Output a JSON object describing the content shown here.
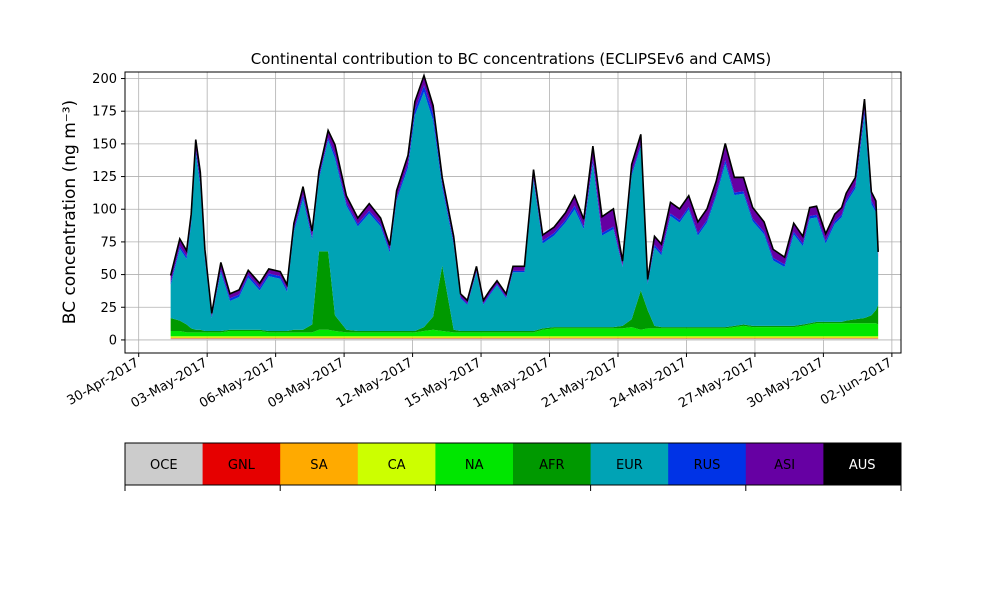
{
  "chart_data": {
    "type": "area",
    "title": "Continental contribution to BC concentrations (ECLIPSEv6 and CAMS)",
    "ylabel": "BC concentration (ng m⁻³)",
    "xlabel": "",
    "x_unit": "days since 01-May-2017",
    "xlim": [
      -1.6,
      32.4
    ],
    "ylim": [
      -10,
      205
    ],
    "grid": true,
    "x_ticks": [
      {
        "value": -1,
        "label": "30-Apr-2017"
      },
      {
        "value": 2,
        "label": "03-May-2017"
      },
      {
        "value": 5,
        "label": "06-May-2017"
      },
      {
        "value": 8,
        "label": "09-May-2017"
      },
      {
        "value": 11,
        "label": "12-May-2017"
      },
      {
        "value": 14,
        "label": "15-May-2017"
      },
      {
        "value": 17,
        "label": "18-May-2017"
      },
      {
        "value": 20,
        "label": "21-May-2017"
      },
      {
        "value": 23,
        "label": "24-May-2017"
      },
      {
        "value": 26,
        "label": "27-May-2017"
      },
      {
        "value": 29,
        "label": "30-May-2017"
      },
      {
        "value": 32,
        "label": "02-Jun-2017"
      }
    ],
    "y_ticks": [
      0,
      25,
      50,
      75,
      100,
      125,
      150,
      175,
      200
    ],
    "x": [
      0.4,
      0.8,
      1.1,
      1.3,
      1.5,
      1.7,
      1.9,
      2.2,
      2.6,
      3.0,
      3.4,
      3.8,
      4.3,
      4.7,
      5.2,
      5.5,
      5.8,
      6.2,
      6.6,
      6.9,
      7.3,
      7.6,
      8.1,
      8.6,
      9.1,
      9.6,
      10.0,
      10.3,
      10.8,
      11.1,
      11.5,
      11.9,
      12.3,
      12.8,
      13.1,
      13.4,
      13.8,
      14.1,
      14.4,
      14.7,
      15.1,
      15.4,
      15.9,
      16.3,
      16.7,
      17.2,
      17.7,
      18.1,
      18.5,
      18.9,
      19.3,
      19.8,
      20.2,
      20.6,
      21.0,
      21.3,
      21.6,
      21.9,
      22.3,
      22.7,
      23.1,
      23.5,
      23.9,
      24.3,
      24.7,
      25.1,
      25.5,
      25.9,
      26.4,
      26.8,
      27.3,
      27.7,
      28.1,
      28.4,
      28.7,
      29.1,
      29.5,
      29.8,
      30.0,
      30.4,
      30.8,
      31.1,
      31.3,
      31.4
    ],
    "series": [
      {
        "name": "OCE",
        "color": "#cccccc",
        "values": [
          1,
          1,
          1,
          1,
          1,
          1,
          1,
          1,
          1,
          1,
          1,
          1,
          1,
          1,
          1,
          1,
          1,
          1,
          1,
          1,
          1,
          1,
          1,
          1,
          1,
          1,
          1,
          1,
          1,
          1,
          1,
          1,
          1,
          1,
          1,
          1,
          1,
          1,
          1,
          1,
          1,
          1,
          1,
          1,
          1,
          1,
          1,
          1,
          1,
          1,
          1,
          1,
          1,
          1,
          1,
          1,
          1,
          1,
          1,
          1,
          1,
          1,
          1,
          1,
          1,
          1,
          1,
          1,
          1,
          1,
          1,
          1,
          1,
          1,
          1,
          1,
          1,
          1,
          1,
          1,
          1,
          1,
          1,
          1
        ]
      },
      {
        "name": "GNL",
        "color": "#e60000",
        "values": [
          0.3,
          0.3,
          0.3,
          0.3,
          0.3,
          0.3,
          0.3,
          0.3,
          0.3,
          0.3,
          0.3,
          0.3,
          0.3,
          0.3,
          0.3,
          0.3,
          0.3,
          0.3,
          0.3,
          0.3,
          0.3,
          0.3,
          0.3,
          0.3,
          0.3,
          0.3,
          0.3,
          0.3,
          0.3,
          0.3,
          0.3,
          0.3,
          0.3,
          0.3,
          0.3,
          0.3,
          0.3,
          0.3,
          0.3,
          0.3,
          0.3,
          0.3,
          0.3,
          0.3,
          0.3,
          0.3,
          0.3,
          0.3,
          0.3,
          0.3,
          0.3,
          0.3,
          0.3,
          0.3,
          0.3,
          0.3,
          0.3,
          0.3,
          0.3,
          0.3,
          0.3,
          0.3,
          0.3,
          0.3,
          0.3,
          0.3,
          0.3,
          0.3,
          0.3,
          0.3,
          0.3,
          0.3,
          0.3,
          0.3,
          0.3,
          0.3,
          0.3,
          0.3,
          0.3,
          0.3,
          0.3,
          0.3,
          0.3,
          0.3
        ]
      },
      {
        "name": "SA",
        "color": "#ffaa00",
        "values": [
          0.5,
          0.5,
          0.5,
          0.5,
          0.5,
          0.5,
          0.5,
          0.5,
          0.5,
          0.5,
          0.5,
          0.5,
          0.5,
          0.5,
          0.5,
          0.5,
          0.5,
          0.5,
          0.5,
          0.5,
          0.5,
          0.5,
          0.5,
          0.5,
          0.5,
          0.5,
          0.5,
          0.5,
          0.5,
          0.5,
          0.5,
          0.5,
          0.5,
          0.5,
          0.5,
          0.5,
          0.5,
          0.5,
          0.5,
          0.5,
          0.5,
          0.5,
          0.5,
          0.5,
          0.5,
          0.5,
          0.5,
          0.5,
          0.5,
          0.5,
          0.5,
          0.5,
          0.5,
          0.5,
          0.5,
          0.5,
          0.5,
          0.5,
          0.5,
          0.5,
          0.5,
          0.5,
          0.5,
          0.5,
          0.5,
          0.5,
          0.5,
          0.5,
          0.5,
          0.5,
          0.5,
          0.5,
          0.5,
          0.5,
          0.5,
          0.5,
          0.5,
          0.5,
          0.5,
          0.5,
          0.5,
          0.5,
          0.5,
          0.5
        ]
      },
      {
        "name": "CA",
        "color": "#ccff00",
        "values": [
          1,
          1,
          1,
          1,
          1,
          1,
          1,
          1,
          1,
          1,
          1,
          1,
          1,
          1,
          1,
          1,
          1,
          1,
          1,
          1,
          1,
          1,
          1,
          1,
          1,
          1,
          1,
          1,
          1,
          1,
          1,
          1,
          1,
          1,
          1,
          1,
          1,
          1,
          1,
          1,
          1,
          1,
          1,
          1,
          1,
          1,
          1,
          1,
          1,
          1,
          1,
          1,
          1,
          1,
          1,
          1,
          1,
          1,
          1,
          1,
          1,
          1,
          1,
          1,
          1,
          1,
          1,
          1,
          1,
          1,
          1,
          1,
          1,
          1,
          1,
          1,
          1,
          1,
          1,
          1,
          1,
          1,
          1,
          1
        ]
      },
      {
        "name": "NA",
        "color": "#00e600",
        "values": [
          4,
          4,
          3,
          3,
          3,
          3,
          3,
          3,
          3,
          4,
          4,
          4,
          4,
          3,
          3,
          3,
          3,
          3,
          3,
          5,
          5,
          4,
          3,
          3,
          3,
          3,
          3,
          3,
          3,
          3,
          4,
          5,
          4,
          3,
          3,
          3,
          3,
          3,
          3,
          3,
          3,
          3,
          3,
          3,
          5,
          6,
          6,
          6,
          6,
          6,
          6,
          6,
          6,
          7,
          5,
          6,
          6,
          6,
          6,
          6,
          6,
          6,
          6,
          6,
          6,
          7,
          8,
          7,
          7,
          7,
          7,
          7,
          8,
          9,
          10,
          10,
          10,
          10,
          10,
          10,
          10,
          10,
          10,
          9
        ]
      },
      {
        "name": "AFR",
        "color": "#009900",
        "values": [
          10,
          8,
          6,
          3,
          2,
          2,
          1,
          1,
          1,
          1,
          1,
          1,
          1,
          1,
          1,
          1,
          2,
          2,
          6,
          60,
          60,
          12,
          2,
          1,
          1,
          1,
          1,
          1,
          1,
          1,
          3,
          10,
          50,
          2,
          1,
          1,
          1,
          1,
          1,
          1,
          1,
          1,
          1,
          1,
          1,
          1,
          1,
          1,
          1,
          1,
          1,
          1,
          2,
          6,
          30,
          14,
          2,
          1,
          1,
          1,
          1,
          1,
          1,
          1,
          1,
          1,
          1,
          1,
          1,
          1,
          1,
          1,
          1,
          1,
          1,
          1,
          1,
          1,
          2,
          3,
          4,
          6,
          10,
          15
        ]
      },
      {
        "name": "EUR",
        "color": "#00a3b5",
        "values": [
          25,
          55,
          50,
          80,
          135,
          110,
          55,
          10,
          45,
          22,
          25,
          40,
          30,
          42,
          40,
          30,
          75,
          100,
          65,
          55,
          85,
          120,
          95,
          80,
          90,
          80,
          60,
          100,
          125,
          165,
          180,
          150,
          60,
          65,
          25,
          20,
          45,
          20,
          28,
          35,
          25,
          45,
          45,
          115,
          65,
          70,
          80,
          90,
          75,
          125,
          70,
          75,
          45,
          110,
          110,
          20,
          60,
          55,
          85,
          80,
          90,
          70,
          80,
          100,
          125,
          100,
          100,
          80,
          70,
          50,
          45,
          70,
          60,
          80,
          80,
          60,
          75,
          80,
          90,
          100,
          155,
          85,
          75,
          35
        ]
      },
      {
        "name": "RUS",
        "color": "#0033e6",
        "values": [
          2,
          2,
          2,
          2,
          3,
          3,
          2,
          1,
          2,
          2,
          2,
          2,
          2,
          2,
          2,
          2,
          2,
          3,
          2,
          2,
          2,
          3,
          2,
          2,
          2,
          2,
          2,
          2,
          3,
          4,
          5,
          5,
          3,
          2,
          1,
          1,
          1,
          1,
          1,
          1,
          1,
          1,
          1,
          2,
          2,
          2,
          2,
          3,
          2,
          3,
          2,
          2,
          1,
          2,
          2,
          1,
          2,
          2,
          2,
          2,
          2,
          2,
          2,
          2,
          3,
          2,
          2,
          2,
          2,
          2,
          2,
          2,
          2,
          2,
          2,
          2,
          2,
          2,
          2,
          2,
          4,
          3,
          2,
          1
        ]
      },
      {
        "name": "ASI",
        "color": "#6600a3",
        "values": [
          5,
          5,
          4,
          5,
          7,
          7,
          5,
          2,
          5,
          3,
          3,
          3,
          3,
          3,
          3,
          3,
          4,
          6,
          4,
          4,
          5,
          7,
          5,
          4,
          5,
          4,
          3,
          5,
          6,
          6,
          7,
          6,
          4,
          4,
          2,
          2,
          3,
          2,
          2,
          2,
          2,
          3,
          3,
          6,
          4,
          4,
          5,
          7,
          5,
          10,
          12,
          13,
          3,
          6,
          7,
          2,
          6,
          6,
          8,
          8,
          8,
          8,
          8,
          9,
          12,
          11,
          10,
          8,
          7,
          6,
          5,
          6,
          5,
          6,
          6,
          5,
          5,
          5,
          5,
          6,
          8,
          6,
          6,
          4
        ]
      },
      {
        "name": "AUS",
        "color": "#000000",
        "values": [
          0.5,
          0.5,
          0.5,
          0.5,
          0.5,
          0.5,
          0.5,
          0.5,
          0.5,
          0.5,
          0.5,
          0.5,
          0.5,
          0.5,
          0.5,
          0.5,
          0.5,
          0.5,
          0.5,
          0.5,
          0.5,
          0.5,
          0.5,
          0.5,
          0.5,
          0.5,
          0.5,
          0.5,
          0.5,
          0.5,
          0.5,
          0.5,
          0.5,
          0.5,
          0.5,
          0.5,
          0.5,
          0.5,
          0.5,
          0.5,
          0.5,
          0.5,
          0.5,
          0.5,
          0.5,
          0.5,
          0.5,
          0.5,
          0.5,
          0.5,
          0.5,
          0.5,
          0.5,
          0.5,
          0.5,
          0.5,
          0.5,
          0.5,
          0.5,
          0.5,
          0.5,
          0.5,
          0.5,
          0.5,
          0.5,
          0.5,
          0.5,
          0.5,
          0.5,
          0.5,
          0.5,
          0.5,
          0.5,
          0.5,
          0.5,
          0.5,
          0.5,
          0.5,
          0.5,
          0.5,
          0.5,
          0.5,
          0.5,
          0.5
        ]
      }
    ],
    "legend": {
      "placement": "below",
      "entries": [
        {
          "label": "OCE",
          "color": "#cccccc"
        },
        {
          "label": "GNL",
          "color": "#e60000"
        },
        {
          "label": "SA",
          "color": "#ffaa00"
        },
        {
          "label": "CA",
          "color": "#ccff00"
        },
        {
          "label": "NA",
          "color": "#00e600"
        },
        {
          "label": "AFR",
          "color": "#009900"
        },
        {
          "label": "EUR",
          "color": "#00a3b5"
        },
        {
          "label": "RUS",
          "color": "#0033e6"
        },
        {
          "label": "ASI",
          "color": "#6600a3"
        },
        {
          "label": "AUS",
          "color": "#000000"
        }
      ]
    }
  }
}
